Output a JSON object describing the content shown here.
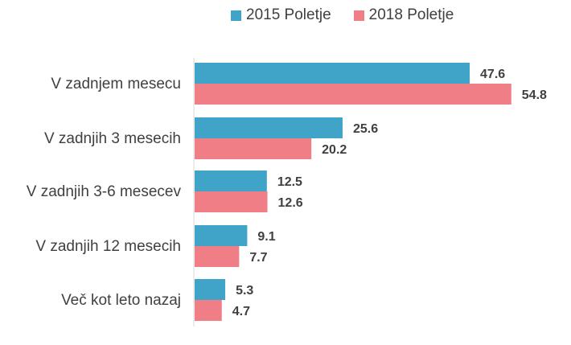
{
  "chart_data": {
    "type": "bar",
    "orientation": "horizontal",
    "categories": [
      "V zadnjem mesecu",
      "V zadnjih 3 mesecih",
      "V zadnjih 3-6 mesecev",
      "V zadnjih 12 mesecih",
      "Več kot leto nazaj"
    ],
    "series": [
      {
        "name": "2015 Poletje",
        "color": "#40A4C8",
        "values": [
          47.6,
          25.6,
          12.5,
          9.1,
          5.3
        ]
      },
      {
        "name": "2018 Poletje",
        "color": "#F07E87",
        "values": [
          54.8,
          20.2,
          12.6,
          7.7,
          4.7
        ]
      }
    ],
    "xlim": [
      0,
      56.5
    ],
    "grid": false,
    "legend": "top",
    "title": "",
    "xlabel": "",
    "ylabel": ""
  }
}
